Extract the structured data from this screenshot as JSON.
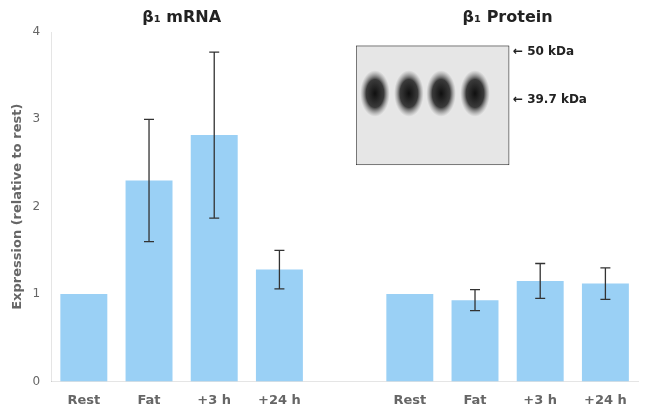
{
  "chart_data": {
    "type": "bar",
    "categories": [
      "Rest",
      "Fat",
      "+3 h",
      "+24 h"
    ],
    "groups": [
      {
        "title": "β₁ mRNA",
        "values": [
          1.0,
          2.3,
          2.82,
          1.28
        ],
        "errors": [
          0.0,
          0.7,
          0.95,
          0.22
        ]
      },
      {
        "title": "β₁ Protein",
        "values": [
          1.0,
          0.93,
          1.15,
          1.12
        ],
        "errors": [
          0.0,
          0.12,
          0.2,
          0.18
        ]
      }
    ],
    "ylabel": "Expression (relative to rest)",
    "ylim": [
      0,
      4
    ],
    "yticks": [
      0,
      1,
      2,
      3,
      4
    ],
    "grid": false,
    "annotations": [
      "← 50 kDa",
      "← 39.7 kDa"
    ]
  }
}
